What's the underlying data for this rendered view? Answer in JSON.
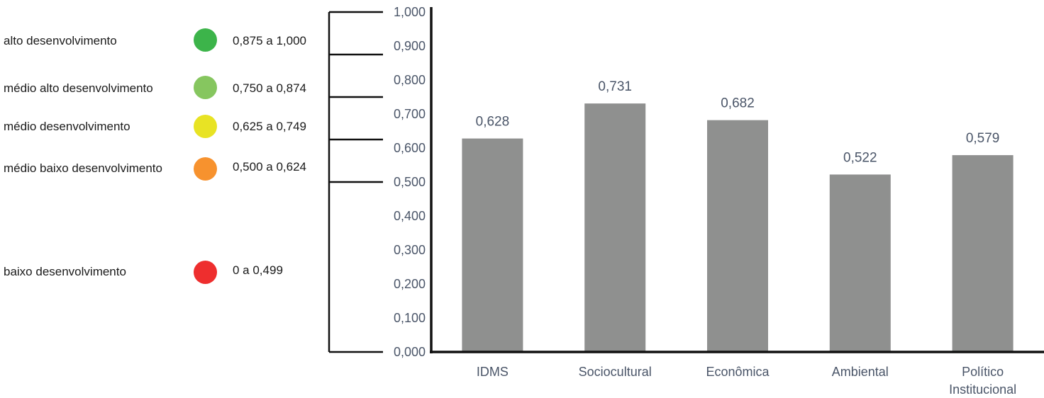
{
  "legend": [
    {
      "label": "alto desenvolvimento",
      "range": "0,875 a 1,000",
      "color": "#3cb44a"
    },
    {
      "label": "médio alto desenvolvimento",
      "range": "0,750 a 0,874",
      "color": "#86c65f"
    },
    {
      "label": "médio desenvolvimento",
      "range": "0,625 a 0,749",
      "color": "#e8e324"
    },
    {
      "label": "médio baixo desenvolvimento",
      "range": "0,500 a 0,624",
      "color": "#f7922e"
    },
    {
      "label": "baixo desenvolvimento",
      "range": "0 a 0,499",
      "color": "#ee2e2e"
    }
  ],
  "chart_data": {
    "type": "bar",
    "categories": [
      "IDMS",
      "Sociocultural",
      "Econômica",
      "Ambiental",
      "Político Institucional"
    ],
    "values": [
      0.628,
      0.731,
      0.682,
      0.522,
      0.579
    ],
    "value_labels": [
      "0,628",
      "0,731",
      "0,682",
      "0,522",
      "0,579"
    ],
    "ylim": [
      0,
      1
    ],
    "yticks": [
      "0,000",
      "0,100",
      "0,200",
      "0,300",
      "0,400",
      "0,500",
      "0,600",
      "0,700",
      "0,800",
      "0,900",
      "1,000"
    ],
    "bracket_bounds": [
      1.0,
      0.875,
      0.75,
      0.625,
      0.5,
      0.0
    ],
    "bar_color": "#8f908f",
    "axis_color": "#111111",
    "grid": false
  }
}
